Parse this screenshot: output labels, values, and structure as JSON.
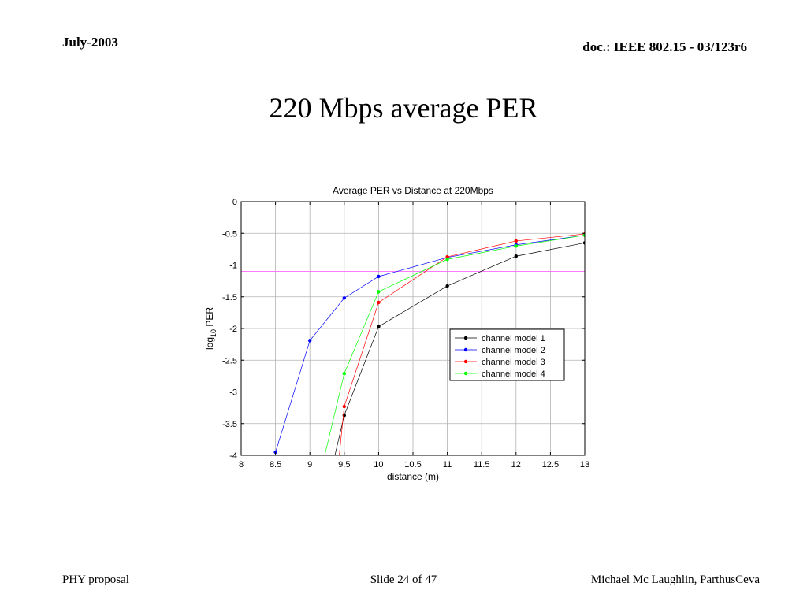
{
  "header": {
    "date": "July-2003",
    "doc": "doc.: IEEE 802.15 -  03/123r6"
  },
  "slide": {
    "title": "220 Mbps average PER"
  },
  "footer": {
    "left": "PHY proposal",
    "center": "Slide 24 of 47",
    "right": "Michael Mc Laughlin, ParthusCeva"
  },
  "chart_data": {
    "type": "line",
    "title": "Average PER vs Distance at 220Mbps",
    "xlabel": "distance (m)",
    "ylabel_main": "log",
    "ylabel_sub": "10",
    "ylabel_tail": " PER",
    "xlim": [
      8,
      13
    ],
    "ylim": [
      -4,
      0
    ],
    "xticks": [
      8,
      8.5,
      9,
      9.5,
      10,
      10.5,
      11,
      11.5,
      12,
      12.5,
      13
    ],
    "xtick_labels": [
      "8",
      "8.5",
      "9",
      "9.5",
      "10",
      "10.5",
      "11",
      "11.5",
      "12",
      "12.5",
      "13"
    ],
    "yticks": [
      0,
      -0.5,
      -1,
      -1.5,
      -2,
      -2.5,
      -3,
      -3.5,
      -4
    ],
    "ytick_labels": [
      "0",
      "-0.5",
      "-1",
      "-1.5",
      "-2",
      "-2.5",
      "-3",
      "-3.5",
      "-4"
    ],
    "grid": true,
    "legend_position": "lower-right",
    "reference_line": {
      "y": -1.1,
      "color": "#ff66ff"
    },
    "series": [
      {
        "name": "channel model 1",
        "color": "#000000",
        "x": [
          9.5,
          10,
          11,
          12,
          13
        ],
        "y": [
          -3.37,
          -1.97,
          -1.33,
          -0.86,
          -0.65
        ],
        "extend_to": [
          9.3,
          -4.3
        ]
      },
      {
        "name": "channel model 2",
        "color": "#0000ff",
        "x": [
          8.5,
          9,
          9.5,
          10,
          11,
          12,
          13
        ],
        "y": [
          -3.95,
          -2.19,
          -1.52,
          -1.18,
          -0.88,
          -0.68,
          -0.53
        ],
        "extend_to": null
      },
      {
        "name": "channel model 3",
        "color": "#ff0000",
        "x": [
          9.5,
          10,
          11,
          12,
          13
        ],
        "y": [
          -3.23,
          -1.59,
          -0.87,
          -0.62,
          -0.51
        ],
        "extend_to": [
          9.4,
          -4.3
        ]
      },
      {
        "name": "channel model 4",
        "color": "#00ff00",
        "x": [
          9.5,
          10,
          11,
          12,
          13
        ],
        "y": [
          -2.71,
          -1.42,
          -0.91,
          -0.7,
          -0.53
        ],
        "extend_to": [
          9.15,
          -4.3
        ]
      }
    ]
  }
}
